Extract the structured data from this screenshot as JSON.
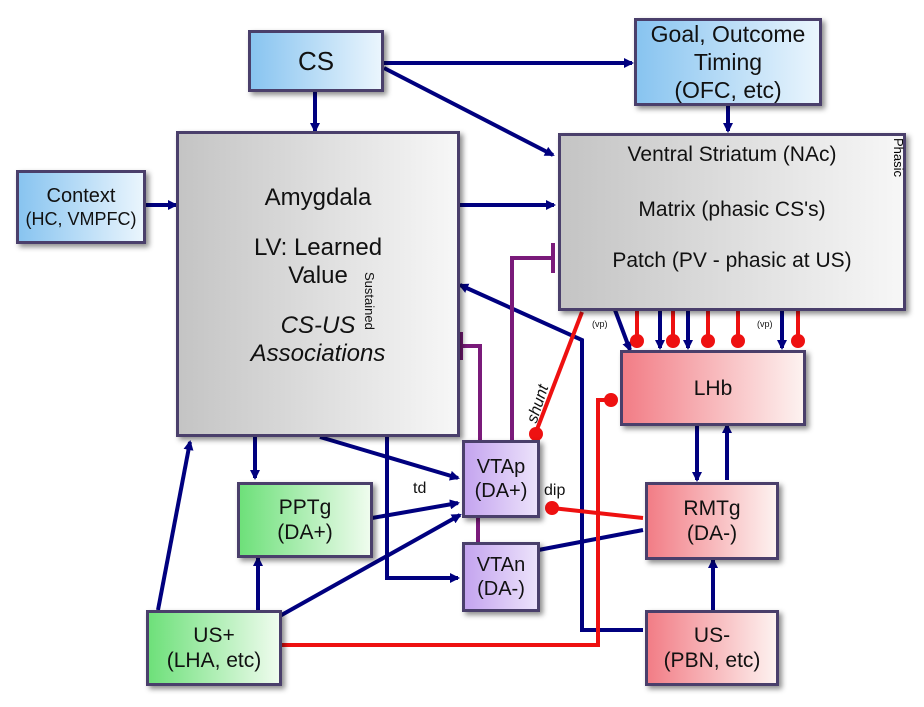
{
  "nodes": {
    "cs": {
      "label": "CS"
    },
    "goal": {
      "line1": "Goal, Outcome",
      "line2": "Timing",
      "line3": "(OFC, etc)"
    },
    "context": {
      "line1": "Context",
      "line2": "(HC, VMPFC)"
    },
    "amygdala": {
      "title": "Amygdala",
      "line1": "LV: Learned",
      "line2": "Value",
      "line3": "CS-US",
      "line4": "Associations",
      "side_label": "Sustained"
    },
    "ventral_striatum": {
      "title": "Ventral Striatum (NAc)",
      "matrix": "Matrix (phasic CS's)",
      "patch": "Patch (PV - phasic at US)",
      "side_label": "Phasic"
    },
    "lhb": {
      "label": "LHb"
    },
    "vtap": {
      "line1": "VTAp",
      "line2": "(DA+)"
    },
    "vtan": {
      "line1": "VTAn",
      "line2": "(DA-)"
    },
    "pptg": {
      "line1": "PPTg",
      "line2": "(DA+)"
    },
    "rmtg": {
      "line1": "RMTg",
      "line2": "(DA-)"
    },
    "us_plus": {
      "line1": "US+",
      "line2": "(LHA, etc)"
    },
    "us_minus": {
      "line1": "US-",
      "line2": "(PBN, etc)"
    }
  },
  "edge_labels": {
    "td": "td",
    "dip": "dip",
    "shunt": "shunt",
    "vp_left": "(vp)",
    "vp_right": "(vp)"
  },
  "colors": {
    "excitatory": "#00007f",
    "inhibitory": "#ee1111",
    "modulatory": "#7a1a7a",
    "border": "#4a3f6b"
  }
}
